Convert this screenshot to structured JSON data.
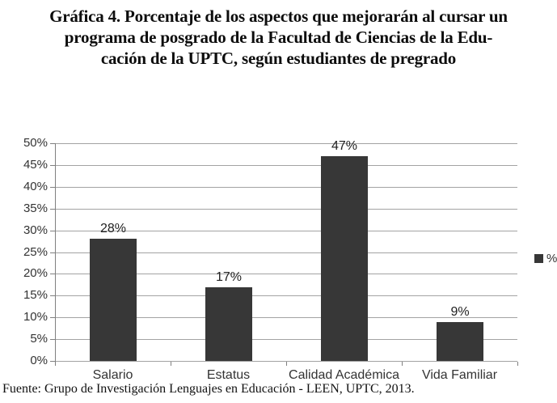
{
  "title": {
    "lines": [
      "Gráfica 4. Porcentaje de los aspectos que mejorarán al cursar un",
      "programa de posgrado de la Facultad de Ciencias de la Edu-",
      "cación de la UPTC, según estudiantes de pregrado"
    ]
  },
  "legend": {
    "label": "%"
  },
  "footer": {
    "source": "Fuente: Grupo de Investigación Lenguajes en Educación - LEEN, UPTC, 2013."
  },
  "chart_data": {
    "type": "bar",
    "categories": [
      "Salario",
      "Estatus",
      "Calidad Académica",
      "Vida Familiar"
    ],
    "values": [
      28,
      17,
      47,
      9
    ],
    "value_labels": [
      "28%",
      "17%",
      "47%",
      "9%"
    ],
    "series_name": "%",
    "title": "",
    "xlabel": "",
    "ylabel": "",
    "ylim": [
      0,
      50
    ],
    "ytick_step": 5,
    "ytick_labels": [
      "0%",
      "5%",
      "10%",
      "15%",
      "20%",
      "25%",
      "30%",
      "35%",
      "40%",
      "45%",
      "50%"
    ],
    "grid": true,
    "legend_position": "right"
  },
  "colors": {
    "bar": "#373737",
    "gridline": "#a3a3a3",
    "axis": "#808080",
    "background": "#ffffff"
  }
}
